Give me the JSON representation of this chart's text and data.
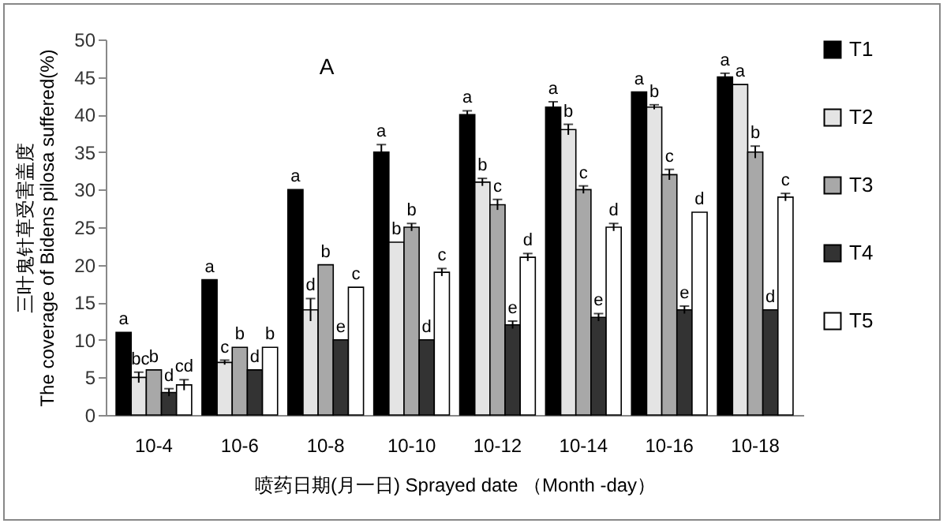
{
  "chart_data": {
    "type": "bar",
    "xlabel": "喷药日期(月一日) Sprayed date （Month -day）",
    "ylabel": "三叶鬼针草受害盖度\nThe coverage of Bidens pilosa suffered(%)",
    "annotations": [
      "A"
    ],
    "categories": [
      "10-4",
      "10-6",
      "10-8",
      "10-10",
      "10-12",
      "10-14",
      "10-16",
      "10-18"
    ],
    "series": [
      {
        "name": "T1",
        "color": "#000000",
        "values": [
          11,
          18,
          30,
          35,
          40,
          41,
          43,
          45
        ],
        "errors": [
          null,
          null,
          null,
          1,
          0.5,
          0.7,
          null,
          0.5
        ],
        "value_labels": [
          "a",
          "a",
          "a",
          "a",
          "a",
          "a",
          "a",
          "a"
        ]
      },
      {
        "name": "T2",
        "color": "#e4e4e4",
        "values": [
          5,
          7,
          14,
          23,
          31,
          38,
          41,
          44
        ],
        "errors": [
          0.7,
          0.3,
          1.5,
          null,
          0.5,
          0.7,
          0.3,
          null
        ],
        "value_labels": [
          "bc",
          "c",
          "d",
          "b",
          "b",
          "b",
          "b",
          "a"
        ]
      },
      {
        "name": "T3",
        "color": "#a8a8a8",
        "values": [
          6,
          9,
          20,
          25,
          28,
          30,
          32,
          35
        ],
        "errors": [
          null,
          null,
          null,
          0.5,
          0.7,
          0.5,
          0.7,
          0.8
        ],
        "value_labels": [
          "b",
          "b",
          "b",
          "b",
          "c",
          "c",
          "c",
          "b"
        ]
      },
      {
        "name": "T4",
        "color": "#333333",
        "values": [
          3,
          6,
          10,
          10,
          12,
          13,
          14,
          14
        ],
        "errors": [
          0.5,
          null,
          null,
          null,
          0.5,
          0.5,
          0.5,
          null
        ],
        "value_labels": [
          "d",
          "d",
          "e",
          "d",
          "e",
          "e",
          "e",
          "d"
        ]
      },
      {
        "name": "T5",
        "color": "#ffffff",
        "values": [
          4,
          9,
          17,
          19,
          21,
          25,
          27,
          29
        ],
        "errors": [
          0.7,
          null,
          null,
          0.5,
          0.5,
          0.5,
          null,
          0.5
        ],
        "value_labels": [
          "cd",
          "b",
          "c",
          "c",
          "d",
          "d",
          "d",
          "c"
        ]
      }
    ],
    "ylim": [
      0,
      50
    ],
    "yticks": [
      0,
      5,
      10,
      15,
      20,
      25,
      30,
      35,
      40,
      45,
      50
    ],
    "legend": "right"
  }
}
